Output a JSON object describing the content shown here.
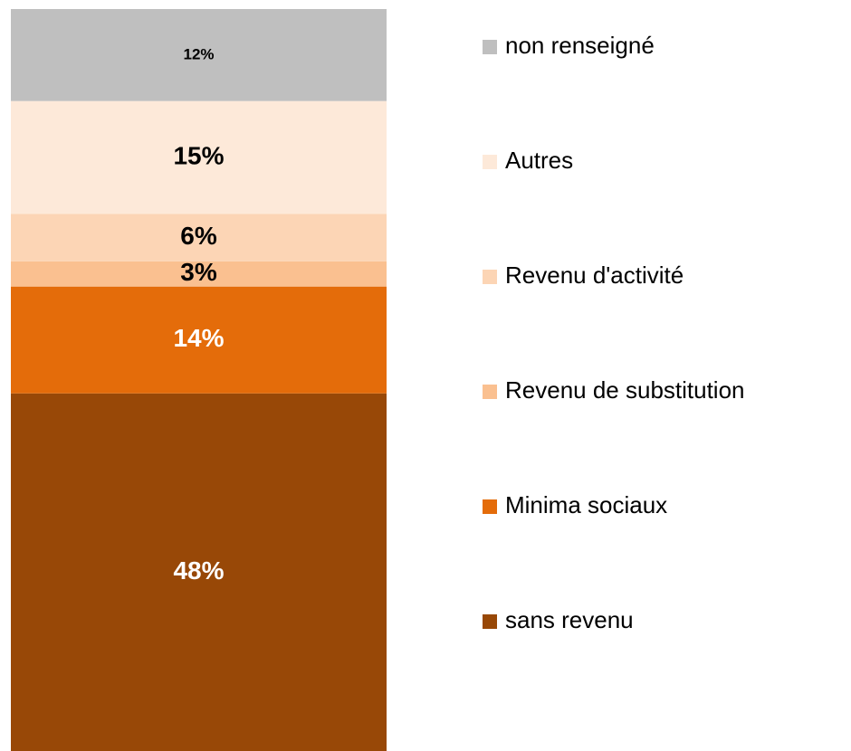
{
  "chart_data": {
    "type": "stacked_bar",
    "categories": [
      null
    ],
    "ylim": [
      0,
      100
    ],
    "series": [
      {
        "name": "sans revenu",
        "color": "#984807",
        "values": [
          48.2
        ],
        "value_labels": [
          "48%"
        ]
      },
      {
        "name": "Minima sociaux",
        "color": "#e46c0a",
        "values": [
          14.4
        ],
        "value_labels": [
          "14%"
        ]
      },
      {
        "name": "Revenu de substitution",
        "color": "#fac090",
        "values": [
          3.4
        ],
        "value_labels": [
          "3%"
        ]
      },
      {
        "name": "Revenu d'activité",
        "color": "#fcd5b5",
        "values": [
          6.4
        ],
        "value_labels": [
          "6%"
        ]
      },
      {
        "name": "Autres",
        "color": "#fde9d9",
        "values": [
          15.2
        ],
        "value_labels": [
          "15%"
        ]
      },
      {
        "name": "non renseigné",
        "color": "#bfbfbf",
        "values": [
          12.4
        ],
        "value_labels": [
          "12%"
        ]
      }
    ],
    "legend": "right"
  }
}
